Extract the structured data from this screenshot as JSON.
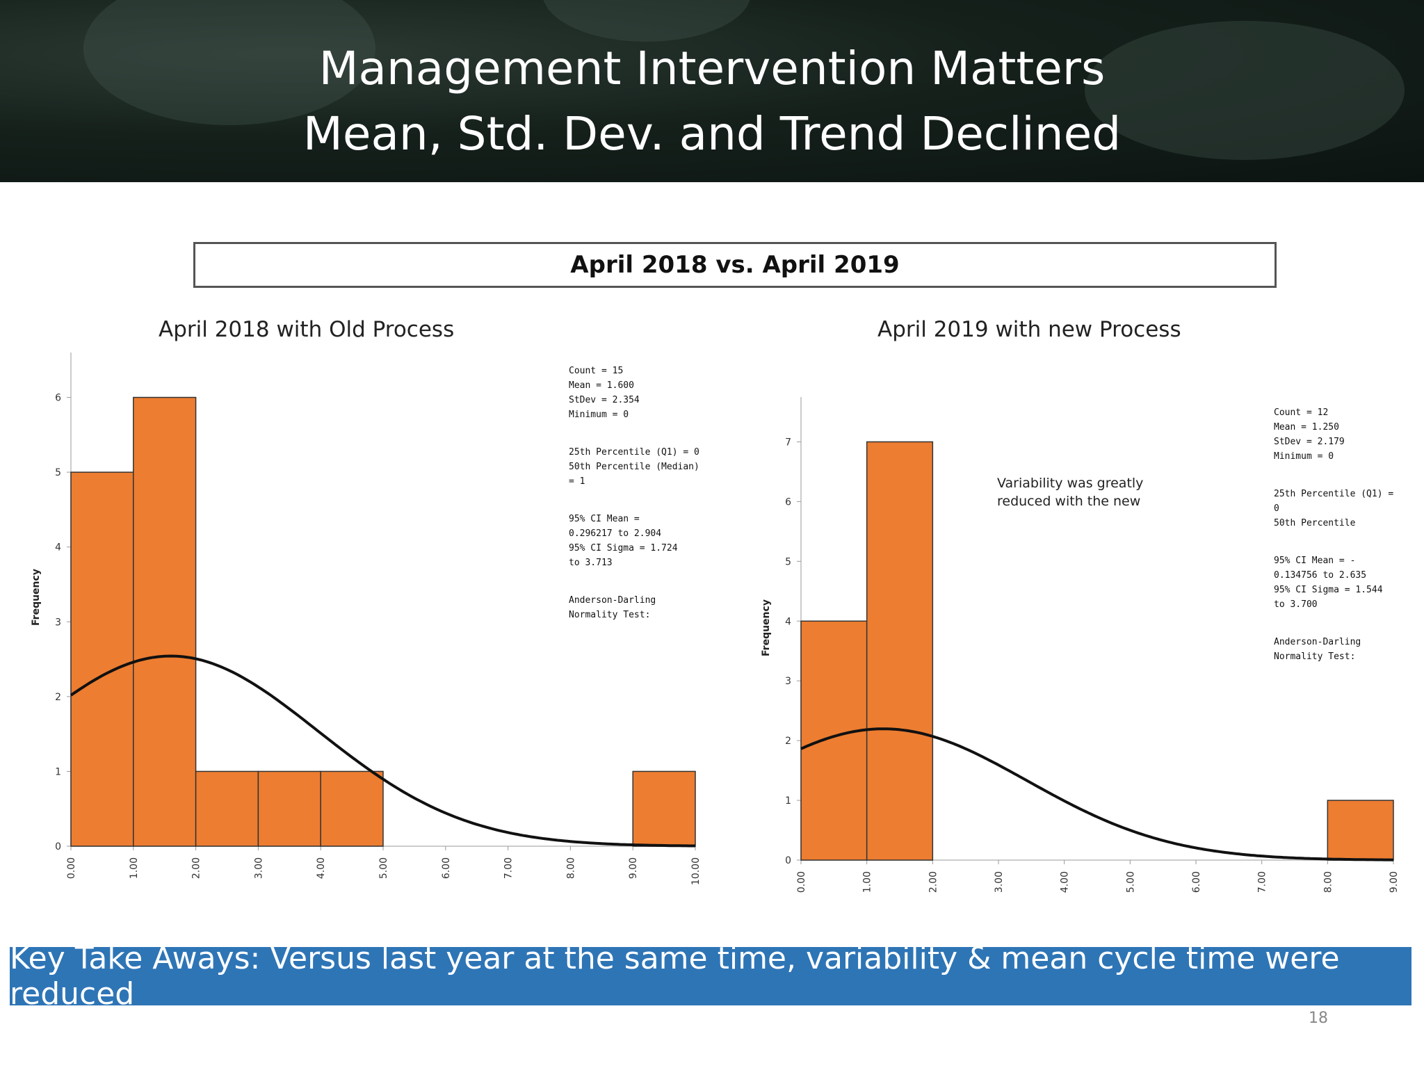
{
  "slide": {
    "title_line1": "Management Intervention Matters",
    "title_line2": "Mean, Std. Dev. and Trend Declined",
    "compare_box": "April 2018 vs. April 2019",
    "takeaway": "Key Take Aways: Versus last year at the same time, variability & mean cycle time were reduced",
    "page_number": "18"
  },
  "chart_data": [
    {
      "type": "bar",
      "title": "April 2018 with Old Process",
      "ylabel": "Frequency",
      "x_tick_labels": [
        "0.00",
        "1.00",
        "2.00",
        "3.00",
        "4.00",
        "5.00",
        "6.00",
        "7.00",
        "8.00",
        "9.00",
        "10.00"
      ],
      "y_tick_labels": [
        "0",
        "1",
        "2",
        "3",
        "4",
        "5",
        "6"
      ],
      "bins": [
        [
          0,
          1
        ],
        [
          1,
          2
        ],
        [
          2,
          3
        ],
        [
          3,
          4
        ],
        [
          4,
          5
        ],
        [
          9,
          10
        ]
      ],
      "values": [
        5,
        6,
        1,
        1,
        1,
        1
      ],
      "xlim": [
        0,
        10
      ],
      "ylim": [
        0,
        6.6
      ],
      "bar_color": "#ed7d31",
      "normal_curve": {
        "mean": 1.6,
        "stdev": 2.354,
        "count": 15
      },
      "stats": [
        "Count = 15\nMean = 1.600\nStDev = 2.354\nMinimum = 0",
        "25th Percentile (Q1) = 0\n50th Percentile (Median)\n= 1",
        "95% CI Mean =\n0.296217 to 2.904\n95% CI Sigma = 1.724\nto 3.713",
        "Anderson-Darling\nNormality Test:"
      ]
    },
    {
      "type": "bar",
      "title": "April 2019 with new Process",
      "ylabel": "Frequency",
      "x_tick_labels": [
        "0.00",
        "1.00",
        "2.00",
        "3.00",
        "4.00",
        "5.00",
        "6.00",
        "7.00",
        "8.00",
        "9.00"
      ],
      "y_tick_labels": [
        "0",
        "1",
        "2",
        "3",
        "4",
        "5",
        "6",
        "7"
      ],
      "bins": [
        [
          0,
          1
        ],
        [
          1,
          2
        ],
        [
          8,
          9
        ]
      ],
      "values": [
        4,
        7,
        1
      ],
      "xlim": [
        0,
        9
      ],
      "ylim": [
        0,
        7.75
      ],
      "bar_color": "#ed7d31",
      "normal_curve": {
        "mean": 1.25,
        "stdev": 2.179,
        "count": 12
      },
      "annotation": "Variability was greatly\nreduced with the new",
      "stats": [
        "Count = 12\nMean = 1.250\nStDev = 2.179\nMinimum = 0",
        "25th Percentile (Q1) =\n0\n50th Percentile",
        "95% CI Mean = -\n0.134756 to 2.635\n95% CI Sigma = 1.544\nto 3.700",
        "Anderson-Darling\nNormality Test:"
      ]
    }
  ]
}
